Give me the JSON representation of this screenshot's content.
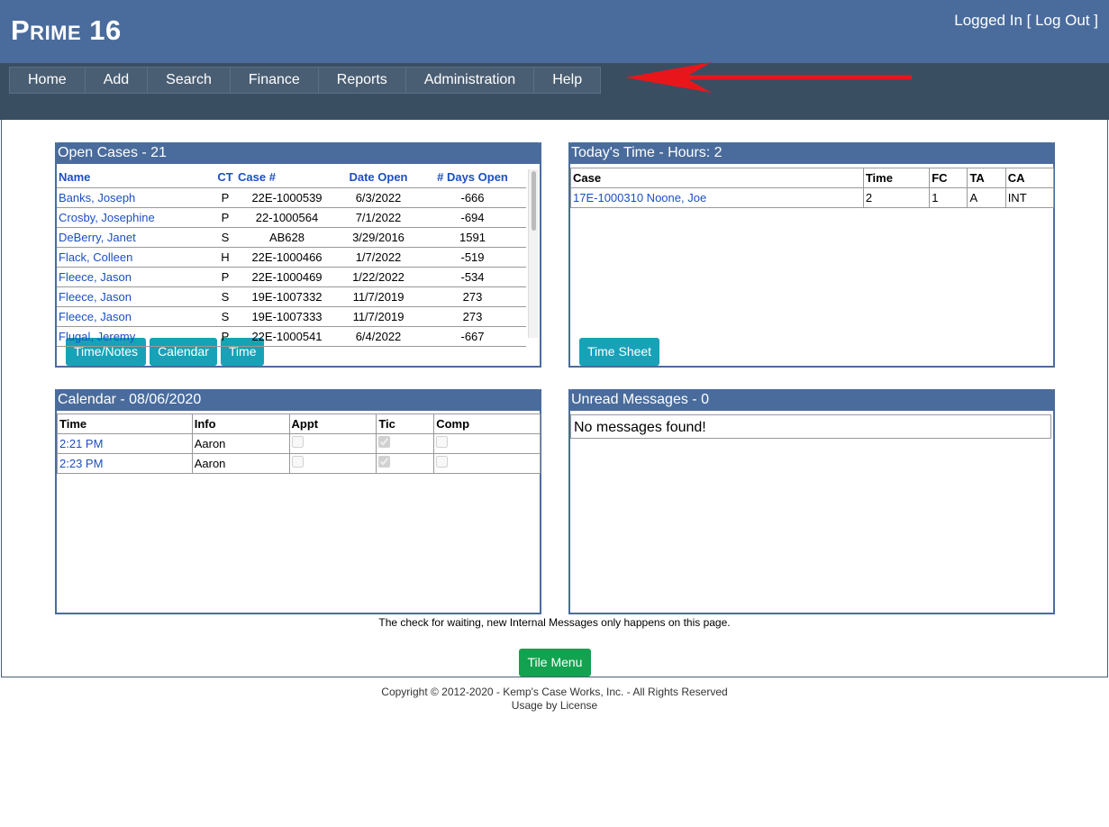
{
  "header": {
    "logo": "Prime 16",
    "login": "Logged In [ Log Out ]"
  },
  "nav": [
    "Home",
    "Add",
    "Search",
    "Finance",
    "Reports",
    "Administration",
    "Help"
  ],
  "open_cases": {
    "title": "Open Cases - 21",
    "columns": [
      "Name",
      "CT",
      "Case #",
      "Date Open",
      "# Days Open"
    ],
    "rows": [
      [
        "Banks, Joseph",
        "P",
        "22E-1000539",
        "6/3/2022",
        "-666"
      ],
      [
        "Crosby, Josephine",
        "P",
        "22-1000564",
        "7/1/2022",
        "-694"
      ],
      [
        "DeBerry, Janet",
        "S",
        "AB628",
        "3/29/2016",
        "1591"
      ],
      [
        "Flack, Colleen",
        "H",
        "22E-1000466",
        "1/7/2022",
        "-519"
      ],
      [
        "Fleece, Jason",
        "P",
        "22E-1000469",
        "1/22/2022",
        "-534"
      ],
      [
        "Fleece, Jason",
        "S",
        "19E-1007332",
        "11/7/2019",
        "273"
      ],
      [
        "Fleece, Jason",
        "S",
        "19E-1007333",
        "11/7/2019",
        "273"
      ],
      [
        "Flugal, Jeremy",
        "P",
        "22E-1000541",
        "6/4/2022",
        "-667"
      ]
    ],
    "buttons": [
      "Time/Notes",
      "Calendar",
      "Time"
    ]
  },
  "todays_time": {
    "title": "Today's Time  - Hours: 2",
    "columns": [
      "Case",
      "Time",
      "FC",
      "TA",
      "CA"
    ],
    "rows": [
      [
        "17E-1000310 Noone, Joe",
        "2",
        "1",
        "A",
        "INT"
      ]
    ],
    "buttons": [
      "Time Sheet"
    ]
  },
  "calendar": {
    "title": "Calendar - 08/06/2020",
    "columns": [
      "Time",
      "Info",
      "Appt",
      "Tic",
      "Comp"
    ],
    "rows": [
      {
        "time": "2:21 PM",
        "info": "Aaron",
        "appt": false,
        "tic": true,
        "comp": false
      },
      {
        "time": "2:23 PM",
        "info": "Aaron",
        "appt": false,
        "tic": true,
        "comp": false
      }
    ]
  },
  "messages": {
    "title": "Unread Messages - 0",
    "empty": "No messages found!"
  },
  "note": "The check for waiting, new Internal Messages only happens on this page.",
  "tile_menu": "Tile Menu",
  "footer": [
    "Copyright © 2012-2020 - Kemp's Case Works, Inc. - All Rights Reserved",
    "Usage by License"
  ]
}
